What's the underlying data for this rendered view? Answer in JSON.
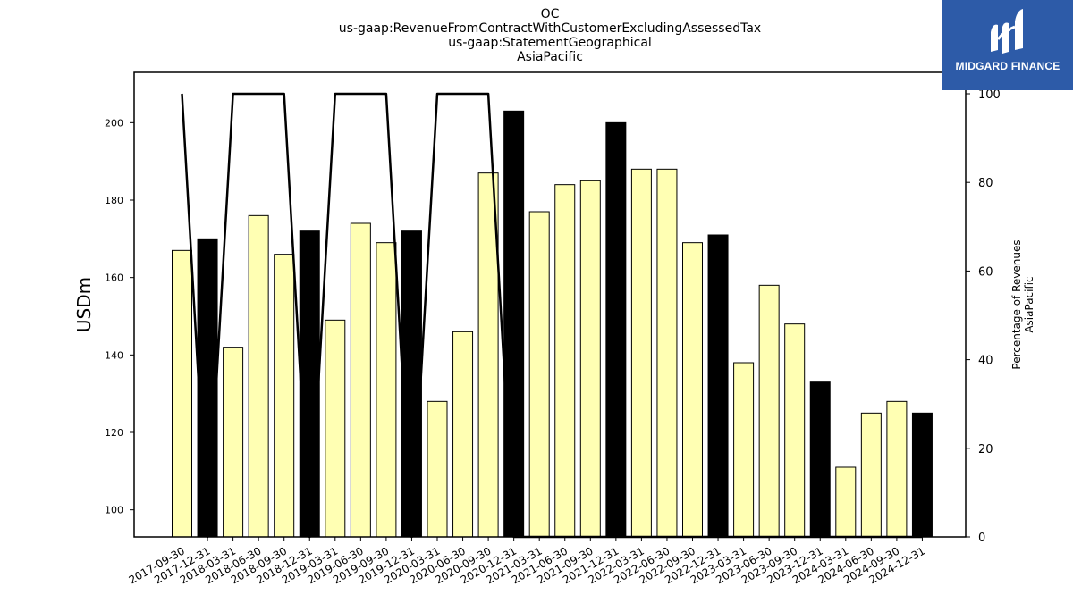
{
  "chart_data": {
    "type": "bar",
    "title_lines": [
      "OC",
      "us-gaap:RevenueFromContractWithCustomerExcludingAssessedTax",
      "us-gaap:StatementGeographical",
      "AsiaPacific"
    ],
    "ylabel": "USDm",
    "y2label_lines": [
      "Percentage of Revenues",
      "AsiaPacific"
    ],
    "ylim": [
      93,
      213
    ],
    "y2lim": [
      0,
      100
    ],
    "y_ticks": [
      100,
      120,
      140,
      160,
      180,
      200
    ],
    "y2_ticks": [
      0,
      20,
      40,
      60,
      80,
      100
    ],
    "categories": [
      "2017-09-30",
      "2017-12-31",
      "2018-03-31",
      "2018-06-30",
      "2018-09-30",
      "2018-12-31",
      "2019-03-31",
      "2019-06-30",
      "2019-09-30",
      "2019-12-31",
      "2020-03-31",
      "2020-06-30",
      "2020-09-30",
      "2020-12-31",
      "2021-03-31",
      "2021-06-30",
      "2021-09-30",
      "2021-12-31",
      "2022-03-31",
      "2022-06-30",
      "2022-09-30",
      "2022-12-31",
      "2023-03-31",
      "2023-06-30",
      "2023-09-30",
      "2023-12-31",
      "2024-03-31",
      "2024-06-30",
      "2024-09-30",
      "2024-12-31"
    ],
    "series": [
      {
        "type": "bar",
        "values": [
          167,
          170,
          142,
          176,
          166,
          172,
          149,
          174,
          169,
          172,
          128,
          146,
          187,
          203,
          177,
          184,
          185,
          200,
          188,
          188,
          169,
          171,
          138,
          158,
          148,
          133,
          111,
          125,
          128,
          125
        ],
        "highlight_quarter_end": "12-31",
        "colors": {
          "default": "#ffffb3",
          "highlight": "#000000",
          "edge": "#000000"
        }
      },
      {
        "type": "line",
        "axis": "right",
        "values": [
          100,
          0,
          100,
          100,
          100,
          0,
          100,
          100,
          100,
          0,
          100,
          100,
          100,
          0,
          0,
          0,
          0,
          0,
          0,
          0,
          0,
          0,
          0,
          0,
          0,
          0,
          0,
          0,
          0,
          0
        ],
        "color": "#000000"
      }
    ],
    "grid": false,
    "legend": "none"
  },
  "logo": {
    "text": "MIDGARD FINANCE",
    "background": "#2d5ba8"
  }
}
